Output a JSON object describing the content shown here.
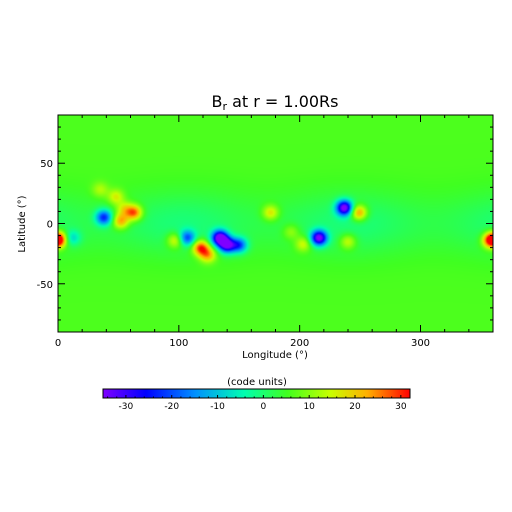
{
  "chart_data": {
    "type": "heatmap",
    "title": {
      "prefix": "B",
      "subscript": "r",
      "suffix": " at r = 1.00Rs"
    },
    "xlabel": "Longitude (°)",
    "ylabel": "Latitude (°)",
    "xlim": [
      0,
      360
    ],
    "ylim": [
      -90,
      90
    ],
    "xticks": [
      0,
      100,
      200,
      300
    ],
    "yticks": [
      -50,
      0,
      50
    ],
    "colorbar": {
      "label": "(code units)",
      "range": [
        -35,
        32
      ],
      "ticks": [
        -30,
        -20,
        -10,
        0,
        10,
        20,
        30
      ],
      "colormap": "rainbow"
    },
    "background_value": 6,
    "features": [
      {
        "lon": 1,
        "lat": -13,
        "value": 28
      },
      {
        "lon": 12,
        "lat": -12,
        "value": -5
      },
      {
        "lon": 35,
        "lat": 28,
        "value": 14
      },
      {
        "lon": 38,
        "lat": 5,
        "value": -20
      },
      {
        "lon": 48,
        "lat": 22,
        "value": 18
      },
      {
        "lon": 52,
        "lat": 2,
        "value": 26
      },
      {
        "lon": 55,
        "lat": 12,
        "value": 18
      },
      {
        "lon": 63,
        "lat": 9,
        "value": 30
      },
      {
        "lon": 97,
        "lat": -14,
        "value": 20
      },
      {
        "lon": 107,
        "lat": -12,
        "value": -16
      },
      {
        "lon": 118,
        "lat": -20,
        "value": 32
      },
      {
        "lon": 124,
        "lat": -26,
        "value": 24
      },
      {
        "lon": 134,
        "lat": -12,
        "value": -35
      },
      {
        "lon": 140,
        "lat": -18,
        "value": -30
      },
      {
        "lon": 150,
        "lat": -18,
        "value": -18
      },
      {
        "lon": 176,
        "lat": 9,
        "value": 20
      },
      {
        "lon": 193,
        "lat": -7,
        "value": 14
      },
      {
        "lon": 203,
        "lat": -17,
        "value": 18
      },
      {
        "lon": 216,
        "lat": -12,
        "value": -33
      },
      {
        "lon": 237,
        "lat": 13,
        "value": -33
      },
      {
        "lon": 240,
        "lat": -15,
        "value": 18
      },
      {
        "lon": 249,
        "lat": 9,
        "value": 28
      },
      {
        "lon": 358,
        "lat": -14,
        "value": 30
      }
    ]
  }
}
